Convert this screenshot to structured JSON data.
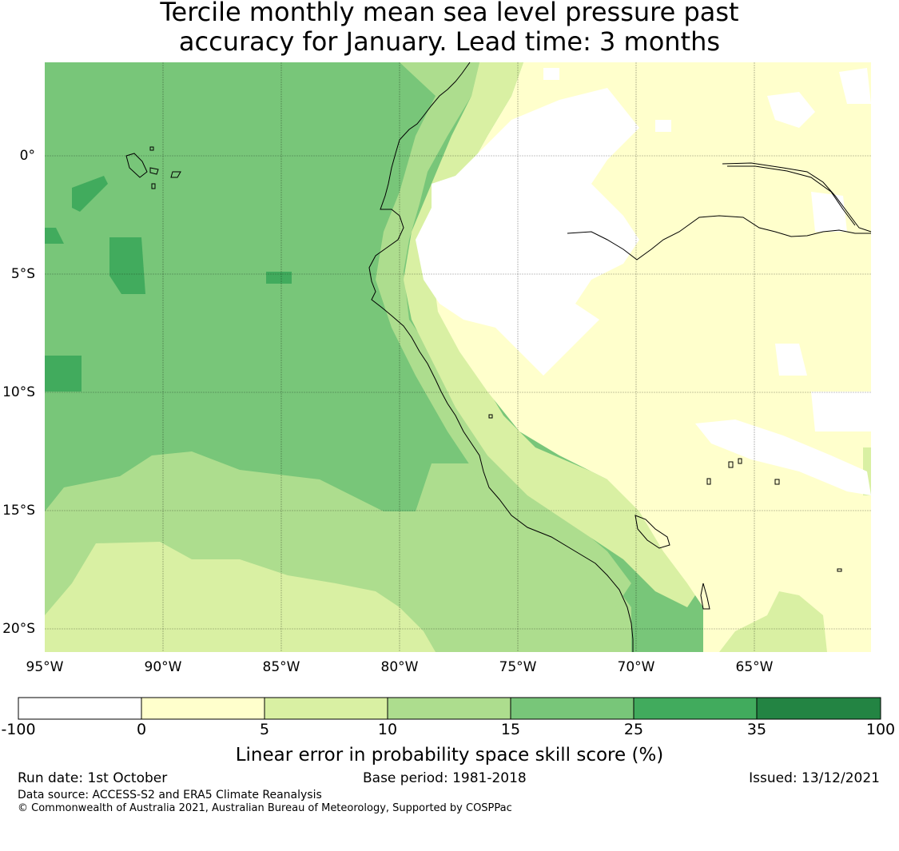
{
  "title_line1": "Tercile monthly mean sea level pressure past",
  "title_line2": "accuracy for January. Lead time: 3 months",
  "lat_labels": [
    "0°",
    "5°S",
    "10°S",
    "15°S",
    "20°S"
  ],
  "lon_labels": [
    "95°W",
    "90°W",
    "85°W",
    "80°W",
    "75°W",
    "70°W",
    "65°W"
  ],
  "colorbar": {
    "ticks": [
      "-100",
      "0",
      "5",
      "10",
      "15",
      "25",
      "35",
      "100"
    ],
    "colors": [
      "#ffffff",
      "#ffffcc",
      "#d9f0a3",
      "#addd8e",
      "#78c679",
      "#41ab5d",
      "#238443"
    ],
    "label": "Linear error in probability space skill score (%)"
  },
  "footer": {
    "run_date": "Run date: 1st October",
    "base_period": "Base period: 1981-2018",
    "issued": "Issued: 13/12/2021",
    "data_source": "Data source: ACCESS-S2 and ERA5 Climate Reanalysis",
    "copyright": "© Commonwealth of Australia 2021, Australian Bureau of Meteorology, Supported by COSPPac"
  }
}
